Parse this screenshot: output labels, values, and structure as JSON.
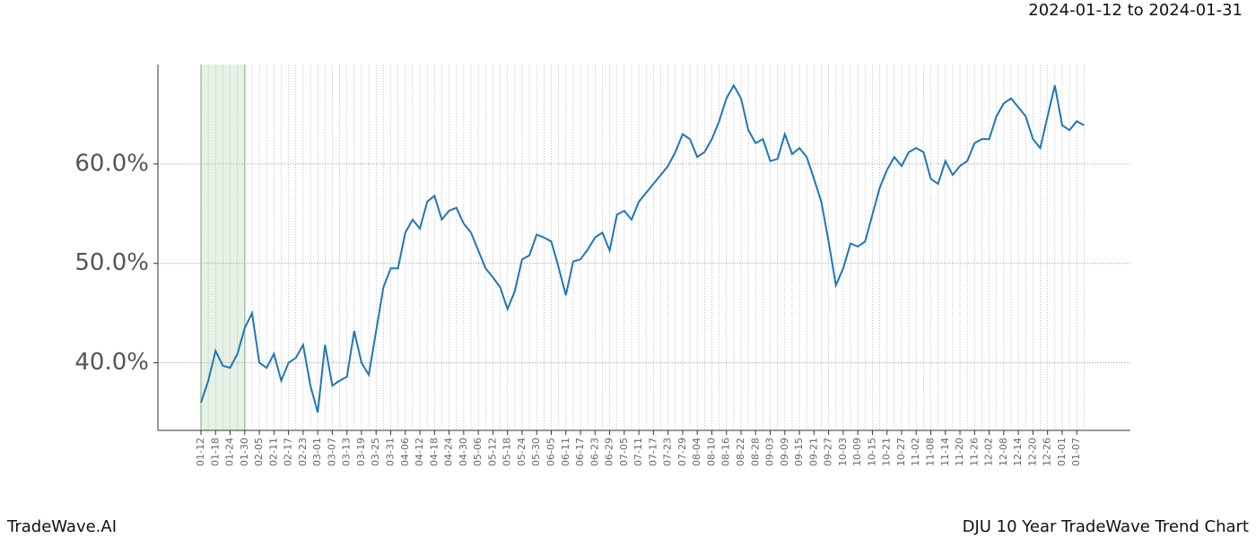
{
  "header": {
    "date_range": "2024-01-12 to 2024-01-31"
  },
  "footer": {
    "brand": "TradeWave.AI",
    "chart_name": "DJU 10 Year TradeWave Trend Chart"
  },
  "chart_data": {
    "type": "line",
    "categories": [
      "01-12",
      null,
      "01-18",
      null,
      "01-24",
      null,
      "01-30",
      null,
      "02-05",
      null,
      "02-11",
      null,
      "02-17",
      null,
      "02-23",
      null,
      "03-01",
      null,
      "03-07",
      null,
      "03-13",
      null,
      "03-19",
      null,
      "03-25",
      null,
      "03-31",
      null,
      "04-06",
      null,
      "04-12",
      null,
      "04-18",
      null,
      "04-24",
      null,
      "04-30",
      null,
      "05-06",
      null,
      "05-12",
      null,
      "05-18",
      null,
      "05-24",
      null,
      "05-30",
      null,
      "06-05",
      null,
      "06-11",
      null,
      "06-17",
      null,
      "06-23",
      null,
      "06-29",
      null,
      "07-05",
      null,
      "07-11",
      null,
      "07-17",
      null,
      "07-23",
      null,
      "07-29",
      null,
      "08-04",
      null,
      "08-10",
      null,
      "08-16",
      null,
      "08-22",
      null,
      "08-28",
      null,
      "09-03",
      null,
      "09-09",
      null,
      "09-15",
      null,
      "09-21",
      null,
      "09-27",
      null,
      "10-03",
      null,
      "10-09",
      null,
      "10-15",
      null,
      "10-21",
      null,
      "10-27",
      null,
      "11-02",
      null,
      "11-08",
      null,
      "11-14",
      null,
      "11-20",
      null,
      "11-26",
      null,
      "12-02",
      null,
      "12-08",
      null,
      "12-14",
      null,
      "12-20",
      null,
      "12-26",
      null,
      "01-01",
      null,
      "01-07",
      null
    ],
    "values": [
      36.0,
      38.2,
      41.2,
      39.7,
      39.5,
      40.9,
      43.5,
      45.0,
      40.0,
      39.5,
      40.9,
      38.2,
      40.0,
      40.5,
      41.8,
      37.7,
      35.0,
      41.8,
      37.7,
      38.2,
      38.6,
      43.2,
      40.0,
      38.8,
      43.2,
      47.6,
      49.5,
      49.5,
      53.1,
      54.4,
      53.5,
      56.2,
      56.8,
      54.4,
      55.3,
      55.6,
      54.0,
      53.1,
      51.3,
      49.5,
      48.6,
      47.6,
      45.4,
      47.2,
      50.4,
      50.8,
      52.9,
      52.6,
      52.2,
      49.6,
      46.8,
      50.2,
      50.4,
      51.4,
      52.6,
      53.1,
      51.3,
      54.9,
      55.3,
      54.4,
      56.2,
      57.1,
      58.0,
      58.9,
      59.8,
      61.2,
      63.0,
      62.5,
      60.7,
      61.2,
      62.5,
      64.3,
      66.6,
      67.9,
      66.6,
      63.4,
      62.1,
      62.5,
      60.3,
      60.5,
      63.0,
      61.0,
      61.6,
      60.7,
      58.5,
      56.2,
      52.2,
      47.8,
      49.5,
      52.0,
      51.7,
      52.2,
      54.9,
      57.6,
      59.4,
      60.7,
      59.8,
      61.2,
      61.6,
      61.2,
      58.5,
      58.0,
      60.3,
      58.9,
      59.8,
      60.3,
      62.1,
      62.5,
      62.5,
      64.8,
      66.1,
      66.6,
      65.7,
      64.8,
      62.5,
      61.6,
      64.8,
      67.9,
      63.9,
      63.4,
      64.3,
      63.9
    ],
    "color": "#1f77b4",
    "ylim": [
      33.2,
      70.0
    ],
    "yticks": [
      {
        "value": 40,
        "label": "40.0%"
      },
      {
        "value": 50,
        "label": "50.0%"
      },
      {
        "value": 60,
        "label": "60.0%"
      }
    ],
    "grid": true,
    "shaded_span": {
      "from": "01-12",
      "to": "01-30",
      "color": "#e6f2e6"
    }
  }
}
